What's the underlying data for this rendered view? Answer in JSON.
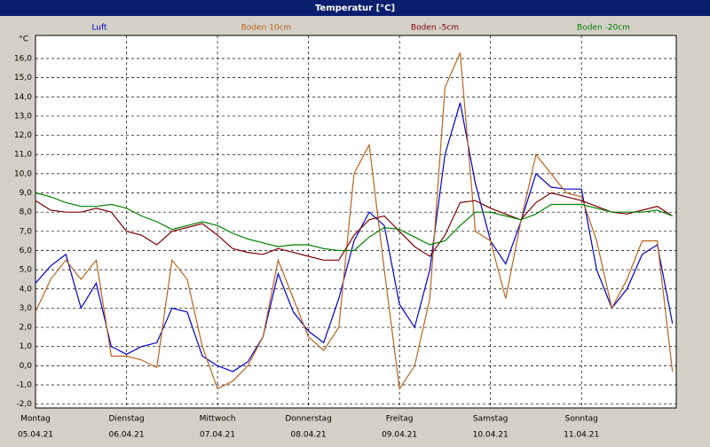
{
  "chart_data": {
    "type": "line",
    "title": "Temperatur [°C]",
    "y_unit": "°C",
    "x": [
      0,
      4,
      8,
      12,
      16,
      20,
      24,
      28,
      32,
      36,
      40,
      44,
      48,
      52,
      56,
      60,
      64,
      68,
      72,
      76,
      80,
      84,
      88,
      92,
      96,
      100,
      104,
      108,
      112,
      116,
      120,
      124,
      128,
      132,
      136,
      140,
      144,
      148,
      152,
      156,
      160,
      164,
      168
    ],
    "xlim": [
      0,
      169
    ],
    "xticks": [
      {
        "value": 0,
        "label": "Montag"
      },
      {
        "value": 24,
        "label": "Dienstag"
      },
      {
        "value": 48,
        "label": "Mittwoch"
      },
      {
        "value": 72,
        "label": "Donnerstag"
      },
      {
        "value": 96,
        "label": "Freitag"
      },
      {
        "value": 120,
        "label": "Samstag"
      },
      {
        "value": 144,
        "label": "Sonntag"
      }
    ],
    "xtick_dates": [
      "05.04.21",
      "06.04.21",
      "07.04.21",
      "08.04.21",
      "09.04.21",
      "10.04.21",
      "11.04.21"
    ],
    "ylim": [
      -2.2,
      17.2
    ],
    "yticks": [
      {
        "value": -2,
        "label": "-2,0"
      },
      {
        "value": -1,
        "label": "-1,0"
      },
      {
        "value": 0,
        "label": "0,0"
      },
      {
        "value": 1,
        "label": "1,0"
      },
      {
        "value": 2,
        "label": "2,0"
      },
      {
        "value": 3,
        "label": "3,0"
      },
      {
        "value": 4,
        "label": "4,0"
      },
      {
        "value": 5,
        "label": "5,0"
      },
      {
        "value": 6,
        "label": "6,0"
      },
      {
        "value": 7,
        "label": "7,0"
      },
      {
        "value": 8,
        "label": "8,0"
      },
      {
        "value": 9,
        "label": "9,0"
      },
      {
        "value": 10,
        "label": "10,0"
      },
      {
        "value": 11,
        "label": "11,0"
      },
      {
        "value": 12,
        "label": "12,0"
      },
      {
        "value": 13,
        "label": "13,0"
      },
      {
        "value": 14,
        "label": "14,0"
      },
      {
        "value": 15,
        "label": "15,0"
      },
      {
        "value": 16,
        "label": "16,0"
      }
    ],
    "grid": true,
    "series": [
      {
        "name": "Luft",
        "color": "#0000cc",
        "values": [
          4.3,
          5.2,
          5.8,
          3.0,
          4.3,
          1.0,
          0.6,
          1.0,
          1.2,
          3.0,
          2.8,
          0.5,
          0.0,
          -0.3,
          0.2,
          1.5,
          4.8,
          2.8,
          1.8,
          1.2,
          3.5,
          6.5,
          8.0,
          7.3,
          3.2,
          2.0,
          5.0,
          11.0,
          13.7,
          9.5,
          6.5,
          5.3,
          7.5,
          10.0,
          9.3,
          9.2,
          9.2,
          5.0,
          3.0,
          4.0,
          5.8,
          6.3,
          2.2
        ]
      },
      {
        "name": "Boden 10cm",
        "color": "#b8641e",
        "values": [
          2.8,
          4.5,
          5.5,
          4.5,
          5.5,
          0.5,
          0.5,
          0.3,
          -0.1,
          5.5,
          4.5,
          1.0,
          -1.2,
          -0.8,
          0.0,
          1.5,
          5.5,
          3.5,
          1.5,
          0.8,
          2.0,
          10.0,
          11.5,
          5.0,
          -1.2,
          0.0,
          3.5,
          14.5,
          16.3,
          7.0,
          6.5,
          3.5,
          7.5,
          11.0,
          10.0,
          9.0,
          8.8,
          6.5,
          3.0,
          4.5,
          6.5,
          6.5,
          -0.3
        ]
      },
      {
        "name": "Boden -5cm",
        "color": "#800000",
        "values": [
          8.6,
          8.1,
          8.0,
          8.0,
          8.2,
          8.0,
          7.0,
          6.8,
          6.3,
          7.0,
          7.2,
          7.4,
          6.8,
          6.1,
          5.9,
          5.8,
          6.1,
          5.9,
          5.7,
          5.5,
          5.5,
          6.8,
          7.6,
          7.8,
          7.0,
          6.2,
          5.7,
          6.8,
          8.5,
          8.6,
          8.2,
          7.9,
          7.6,
          8.5,
          9.0,
          8.8,
          8.6,
          8.3,
          8.0,
          7.9,
          8.1,
          8.3,
          7.8
        ]
      },
      {
        "name": "Boden -20cm",
        "color": "#008000",
        "values": [
          9.0,
          8.8,
          8.5,
          8.3,
          8.3,
          8.4,
          8.2,
          7.8,
          7.5,
          7.1,
          7.3,
          7.5,
          7.3,
          6.9,
          6.6,
          6.4,
          6.2,
          6.3,
          6.3,
          6.1,
          6.0,
          6.0,
          6.7,
          7.2,
          7.1,
          6.7,
          6.3,
          6.5,
          7.3,
          8.0,
          8.0,
          7.8,
          7.6,
          7.9,
          8.4,
          8.4,
          8.4,
          8.2,
          8.0,
          8.0,
          8.0,
          8.1,
          7.8
        ]
      }
    ]
  }
}
